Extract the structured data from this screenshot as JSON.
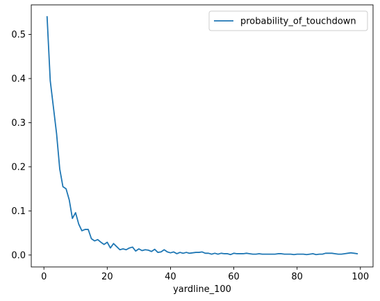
{
  "chart_data": {
    "type": "line",
    "title": "",
    "xlabel": "yardline_100",
    "ylabel": "",
    "xlim": [
      -4,
      104
    ],
    "ylim": [
      -0.027,
      0.567
    ],
    "xticks": [
      0,
      20,
      40,
      60,
      80,
      100
    ],
    "yticks": [
      0.0,
      0.1,
      0.2,
      0.3,
      0.4,
      0.5
    ],
    "ytick_labels": [
      "0.0",
      "0.1",
      "0.2",
      "0.3",
      "0.4",
      "0.5"
    ],
    "grid": false,
    "legend_position": "top-right",
    "series": [
      {
        "name": "probability_of_touchdown",
        "color": "#1f77b4",
        "x": [
          1,
          2,
          3,
          4,
          5,
          6,
          7,
          8,
          9,
          10,
          11,
          12,
          13,
          14,
          15,
          16,
          17,
          18,
          19,
          20,
          21,
          22,
          23,
          24,
          25,
          26,
          27,
          28,
          29,
          30,
          31,
          32,
          33,
          34,
          35,
          36,
          37,
          38,
          39,
          40,
          41,
          42,
          43,
          44,
          45,
          46,
          47,
          48,
          49,
          50,
          51,
          52,
          53,
          54,
          55,
          56,
          57,
          58,
          59,
          60,
          61,
          62,
          63,
          64,
          65,
          66,
          67,
          68,
          69,
          70,
          71,
          72,
          73,
          74,
          75,
          76,
          77,
          78,
          79,
          80,
          81,
          82,
          83,
          84,
          85,
          86,
          87,
          88,
          89,
          90,
          91,
          92,
          93,
          94,
          95,
          96,
          97,
          98,
          99
        ],
        "y": [
          0.54,
          0.395,
          0.335,
          0.275,
          0.195,
          0.155,
          0.15,
          0.125,
          0.083,
          0.096,
          0.07,
          0.055,
          0.058,
          0.058,
          0.037,
          0.032,
          0.035,
          0.029,
          0.024,
          0.029,
          0.016,
          0.026,
          0.019,
          0.012,
          0.014,
          0.012,
          0.016,
          0.018,
          0.009,
          0.014,
          0.01,
          0.012,
          0.011,
          0.008,
          0.013,
          0.006,
          0.007,
          0.012,
          0.007,
          0.005,
          0.007,
          0.003,
          0.006,
          0.004,
          0.006,
          0.004,
          0.005,
          0.006,
          0.006,
          0.007,
          0.004,
          0.004,
          0.002,
          0.004,
          0.002,
          0.004,
          0.003,
          0.003,
          0.001,
          0.004,
          0.003,
          0.003,
          0.003,
          0.004,
          0.003,
          0.002,
          0.002,
          0.003,
          0.002,
          0.002,
          0.002,
          0.002,
          0.002,
          0.003,
          0.003,
          0.002,
          0.002,
          0.002,
          0.001,
          0.002,
          0.002,
          0.002,
          0.001,
          0.002,
          0.003,
          0.001,
          0.002,
          0.002,
          0.004,
          0.004,
          0.004,
          0.003,
          0.002,
          0.002,
          0.003,
          0.004,
          0.005,
          0.004,
          0.003
        ]
      }
    ]
  }
}
